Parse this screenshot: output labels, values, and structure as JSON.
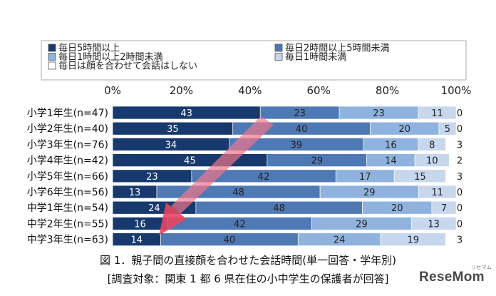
{
  "chart_data": {
    "type": "bar",
    "orientation": "horizontal",
    "stacked": true,
    "percent": true,
    "xlim": [
      0,
      100
    ],
    "x_ticks": [
      "0%",
      "20%",
      "40%",
      "60%",
      "80%",
      "100%"
    ],
    "categories": [
      "小学1年生(n=47)",
      "小学2年生(n=40)",
      "小学3年生(n=76)",
      "小学4年生(n=42)",
      "小学5年生(n=66)",
      "小学6年生(n=56)",
      "中学1年生(n=54)",
      "中学2年生(n=55)",
      "中学3年生(n=63)"
    ],
    "series": [
      {
        "name": "毎日5時間以上",
        "color": "#17396d",
        "values": [
          43,
          35,
          34,
          45,
          23,
          13,
          24,
          16,
          14
        ]
      },
      {
        "name": "毎日2時間以上5時間未満",
        "color": "#4f79b5",
        "values": [
          23,
          40,
          39,
          29,
          42,
          48,
          48,
          42,
          40
        ]
      },
      {
        "name": "毎日1時間以上2時間未満",
        "color": "#8fb3de",
        "values": [
          23,
          20,
          16,
          14,
          17,
          29,
          20,
          29,
          24
        ]
      },
      {
        "name": "毎日1時間未満",
        "color": "#c6d7ee",
        "values": [
          11,
          5,
          8,
          10,
          15,
          11,
          7,
          13,
          19
        ]
      },
      {
        "name": "毎日は顔を合わせて会話はしない",
        "color": "#ffffff",
        "values": [
          0,
          0,
          3,
          2,
          3,
          0,
          0,
          0,
          3
        ]
      }
    ],
    "legend_position": "top",
    "grid": false,
    "annotation": "decreasing-trend-arrow"
  },
  "caption": {
    "line1": "図 1．親子間の直接顔を合わせた会話時間(単一回答・学年別)",
    "line2": "[調査対象：関東 1 都 6 県在住の小中学生の保護者が回答]"
  },
  "brand": {
    "logo": "ReseMom",
    "sub": "リセマム"
  }
}
